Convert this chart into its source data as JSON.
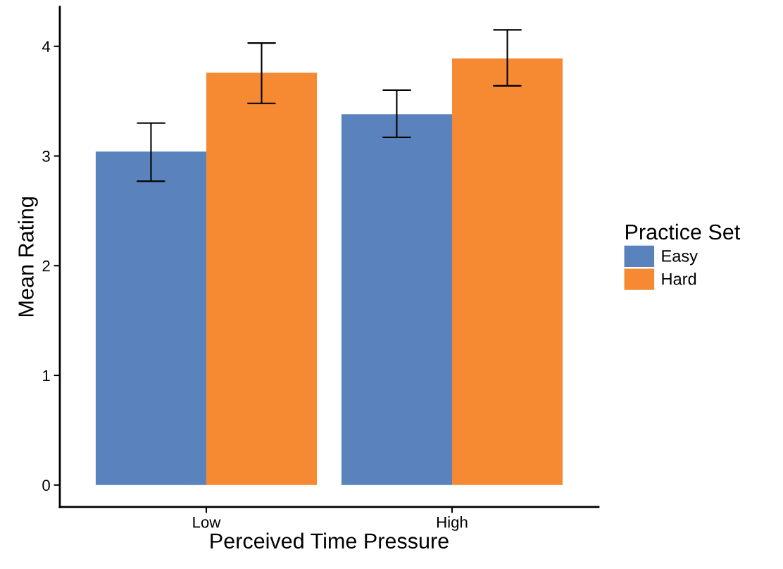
{
  "chart_data": {
    "type": "bar",
    "xlabel": "Perceived Time Pressure",
    "ylabel": "Mean Rating",
    "legend_title": "Practice Set",
    "categories": [
      "Low",
      "High"
    ],
    "series": [
      {
        "name": "Easy",
        "color": "#5a83bd",
        "values": [
          3.04,
          3.38
        ],
        "errors": [
          [
            2.77,
            3.3
          ],
          [
            3.17,
            3.6
          ]
        ]
      },
      {
        "name": "Hard",
        "color": "#f68a33",
        "values": [
          3.76,
          3.89
        ],
        "errors": [
          [
            3.48,
            4.03
          ],
          [
            3.64,
            4.15
          ]
        ]
      }
    ],
    "ylim": [
      -0.2,
      4.36
    ],
    "yticks": [
      0,
      1,
      2,
      3,
      4
    ],
    "grid": false,
    "legend": "right"
  }
}
